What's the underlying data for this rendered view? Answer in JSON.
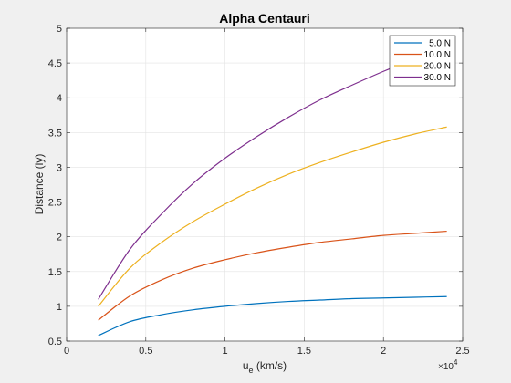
{
  "chart_data": {
    "type": "line",
    "title": "Alpha Centauri",
    "xlabel_main": "u",
    "xlabel_sub": "e",
    "xlabel_units": " (km/s)",
    "ylabel": "Distance (ly)",
    "x_exponent_base": "×10",
    "x_exponent_power": "4",
    "xlim": [
      0,
      25000
    ],
    "ylim": [
      0.5,
      5
    ],
    "xticks": [
      0,
      5000,
      10000,
      15000,
      20000,
      25000
    ],
    "xtick_labels": [
      "0",
      "0.5",
      "1",
      "1.5",
      "2",
      "2.5"
    ],
    "yticks": [
      0.5,
      1,
      1.5,
      2,
      2.5,
      3,
      3.5,
      4,
      4.5,
      5
    ],
    "ytick_labels": [
      "0.5",
      "1",
      "1.5",
      "2",
      "2.5",
      "3",
      "3.5",
      "4",
      "4.5",
      "5"
    ],
    "grid": true,
    "legend_position": "top-right",
    "x": [
      2000,
      4000,
      6000,
      8000,
      10000,
      12000,
      14000,
      16000,
      18000,
      20000,
      22000,
      24000
    ],
    "series": [
      {
        "name": "5.0 N",
        "color": "#0072BD",
        "values": [
          0.58,
          0.78,
          0.88,
          0.95,
          1.0,
          1.04,
          1.07,
          1.09,
          1.11,
          1.12,
          1.13,
          1.14
        ]
      },
      {
        "name": "10.0 N",
        "color": "#D95319",
        "values": [
          0.8,
          1.15,
          1.38,
          1.55,
          1.67,
          1.77,
          1.85,
          1.92,
          1.97,
          2.02,
          2.05,
          2.08
        ]
      },
      {
        "name": "20.0 N",
        "color": "#EDB120",
        "values": [
          1.0,
          1.55,
          1.92,
          2.22,
          2.47,
          2.7,
          2.9,
          3.07,
          3.22,
          3.36,
          3.48,
          3.58
        ]
      },
      {
        "name": "30.0 N",
        "color": "#7E2F8E",
        "values": [
          1.1,
          1.82,
          2.33,
          2.77,
          3.13,
          3.44,
          3.72,
          3.97,
          4.18,
          4.38,
          4.56,
          4.7
        ]
      }
    ]
  }
}
